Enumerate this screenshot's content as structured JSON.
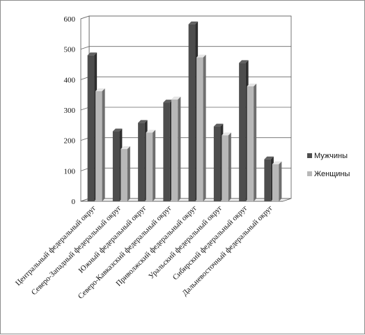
{
  "chart_data": {
    "type": "bar",
    "categories": [
      "Центральный федеральный округ",
      "Северо-Западный федеральный округ",
      "Южный федеральный округ",
      "Северо-Кавказский федеральный округ",
      "Приволжский федеральный округ",
      "Уральский федеральный округ",
      "Сибирский федеральный округ",
      "Дальневосточный федеральный округ"
    ],
    "series": [
      {
        "name": "Мужчины",
        "values": [
          480,
          230,
          258,
          325,
          582,
          246,
          455,
          138
        ],
        "color": "#4d4d4d"
      },
      {
        "name": "Женщины",
        "values": [
          362,
          172,
          226,
          335,
          473,
          217,
          378,
          122
        ],
        "color": "#b8b8b8"
      }
    ],
    "y_ticks": [
      "0",
      "100",
      "200",
      "300",
      "400",
      "500",
      "600"
    ],
    "ylim": [
      0,
      600
    ],
    "grid": true,
    "legend_position": "right",
    "title": "",
    "xlabel": "",
    "ylabel": ""
  }
}
